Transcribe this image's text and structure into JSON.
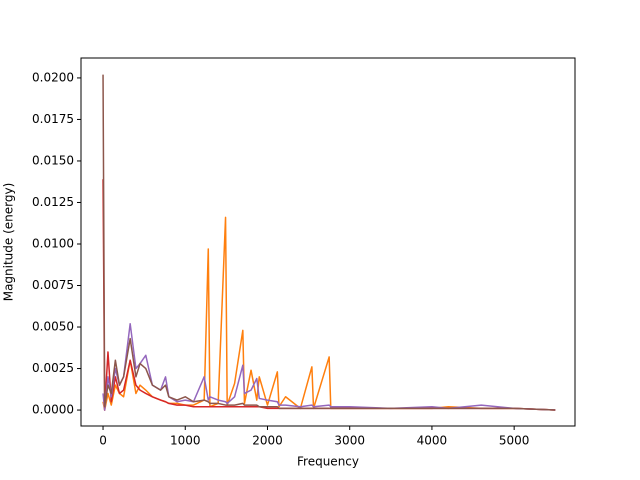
{
  "chart_data": {
    "type": "line",
    "x_label": "Frequency",
    "y_label": "Magnitude (energy)",
    "x": [
      0,
      20,
      60,
      100,
      150,
      200,
      250,
      330,
      400,
      450,
      520,
      600,
      700,
      760,
      800,
      900,
      1000,
      1100,
      1230,
      1280,
      1300,
      1400,
      1490,
      1510,
      1600,
      1700,
      1720,
      1800,
      1870,
      1900,
      2000,
      2120,
      2140,
      2220,
      2400,
      2540,
      2560,
      2750,
      2770,
      3000,
      3500,
      4000,
      4200,
      4600,
      5000,
      5500
    ],
    "series": [
      {
        "color": "#ff7f0e",
        "values": [
          0.0005,
          0,
          0.001,
          0.0003,
          0.0015,
          0.001,
          0.0008,
          0.003,
          0.001,
          0.0015,
          0.0012,
          0.0008,
          0.0006,
          0.0005,
          0.0004,
          0.0004,
          0.0003,
          0.0003,
          0.0006,
          0.0097,
          0.0002,
          0.0004,
          0.0116,
          0.0003,
          0.0016,
          0.0048,
          0.0004,
          0.0024,
          0.0006,
          0.002,
          0.0003,
          0.0023,
          0.0002,
          0.0008,
          0.0001,
          0.0026,
          0.0001,
          0.0032,
          0.0001,
          0.0001,
          0.0001,
          0.0001,
          0.0002,
          0.0001,
          0.0001,
          0
        ]
      },
      {
        "color": "#d62728",
        "values": [
          0.0139,
          0,
          0.0035,
          0.0005,
          0.002,
          0.001,
          0.0012,
          0.003,
          0.0015,
          0.0012,
          0.001,
          0.0008,
          0.0006,
          0.0005,
          0.0004,
          0.0003,
          0.0003,
          0.0002,
          0.0002,
          0.0002,
          0.0002,
          0.0002,
          0.0002,
          0.0002,
          0.0002,
          0.0002,
          0.0002,
          0.0002,
          0.0002,
          0.0002,
          0.0001,
          0.0001,
          0.0001,
          0.0001,
          0.0001,
          0.0001,
          0.0001,
          0.0001,
          0.0001,
          0.0001,
          0.0001,
          0.0001,
          0.0001,
          0.0001,
          0.0001,
          0
        ]
      },
      {
        "color": "#9467bd",
        "values": [
          0.001,
          0,
          0.002,
          0.0008,
          0.0025,
          0.0015,
          0.002,
          0.0052,
          0.0025,
          0.0028,
          0.0033,
          0.0015,
          0.0012,
          0.002,
          0.0008,
          0.0005,
          0.0006,
          0.0005,
          0.002,
          0.0006,
          0.0008,
          0.0006,
          0.0005,
          0.0004,
          0.0008,
          0.0027,
          0.001,
          0.0012,
          0.0019,
          0.0007,
          0.0006,
          0.0005,
          0.0003,
          0.0003,
          0.0002,
          0.0003,
          0.0002,
          0.0003,
          0.0002,
          0.0002,
          0.0001,
          0.0002,
          0.0001,
          0.0003,
          0.0001,
          0
        ]
      },
      {
        "color": "#8c564b",
        "values": [
          0.0202,
          0.0002,
          0.0015,
          0.001,
          0.003,
          0.0015,
          0.002,
          0.0043,
          0.002,
          0.0028,
          0.0025,
          0.0015,
          0.0012,
          0.0015,
          0.0008,
          0.0006,
          0.0008,
          0.0005,
          0.0006,
          0.0005,
          0.0004,
          0.0004,
          0.0003,
          0.0003,
          0.0003,
          0.0004,
          0.0003,
          0.0003,
          0.0003,
          0.0002,
          0.0002,
          0.0002,
          0.0001,
          0.0001,
          0.0001,
          0.0001,
          0.0001,
          0.0001,
          0.0001,
          0.0001,
          0.0001,
          0.0001,
          0.0001,
          0.0001,
          0.0001,
          0
        ]
      }
    ],
    "xlim": [
      -268,
      5740
    ],
    "ylim": [
      -0.00096,
      0.0212
    ],
    "xticks": [
      0,
      1000,
      2000,
      3000,
      4000,
      5000
    ],
    "yticks": [
      {
        "value": 0,
        "label": "0.0000"
      },
      {
        "value": 0.0025,
        "label": "0.0025"
      },
      {
        "value": 0.005,
        "label": "0.0050"
      },
      {
        "value": 0.0075,
        "label": "0.0075"
      },
      {
        "value": 0.01,
        "label": "0.0100"
      },
      {
        "value": 0.0125,
        "label": "0.0125"
      },
      {
        "value": 0.015,
        "label": "0.0150"
      },
      {
        "value": 0.0175,
        "label": "0.0175"
      },
      {
        "value": 0.02,
        "label": "0.0200"
      }
    ],
    "grid": false
  }
}
